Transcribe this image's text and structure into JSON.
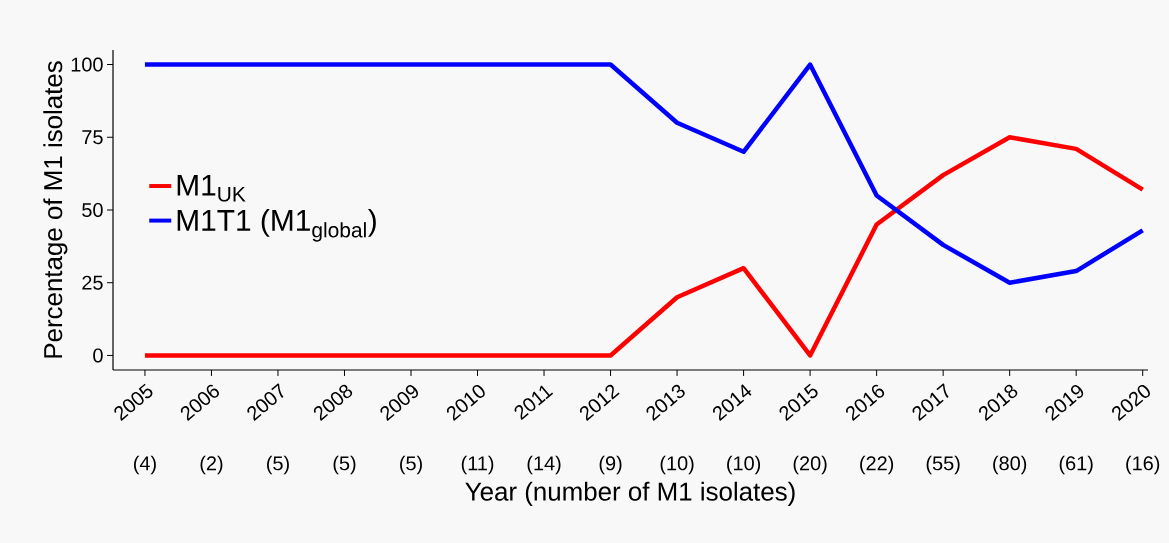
{
  "chart_data": {
    "type": "line",
    "ylabel": "Percentage of M1 isolates",
    "xlabel": "Year (number of M1 isolates)",
    "categories": [
      "2005",
      "2006",
      "2007",
      "2008",
      "2009",
      "2010",
      "2011",
      "2012",
      "2013",
      "2014",
      "2015",
      "2016",
      "2017",
      "2018",
      "2019",
      "2020"
    ],
    "annotations": [
      "(4)",
      "(2)",
      "(5)",
      "(5)",
      "(5)",
      "(11)",
      "(14)",
      "(9)",
      "(10)",
      "(10)",
      "(20)",
      "(22)",
      "(55)",
      "(80)",
      "(61)",
      "(16)"
    ],
    "series": [
      {
        "name": "M1$_{UK}$",
        "color": "#ff0000",
        "values": [
          0,
          0,
          0,
          0,
          0,
          0,
          0,
          0,
          20,
          30,
          0,
          45,
          62,
          75,
          71,
          57
        ]
      },
      {
        "name": "M1T1 (M1$_{global}$)",
        "color": "#0000ff",
        "values": [
          100,
          100,
          100,
          100,
          100,
          100,
          100,
          100,
          80,
          70,
          100,
          55,
          38,
          25,
          29,
          43
        ]
      }
    ],
    "ylim": [
      -5,
      105
    ],
    "yticks": [
      0,
      25,
      50,
      75,
      100
    ],
    "legend": "left",
    "marker": "none",
    "line_style": "solid",
    "grid": false
  }
}
